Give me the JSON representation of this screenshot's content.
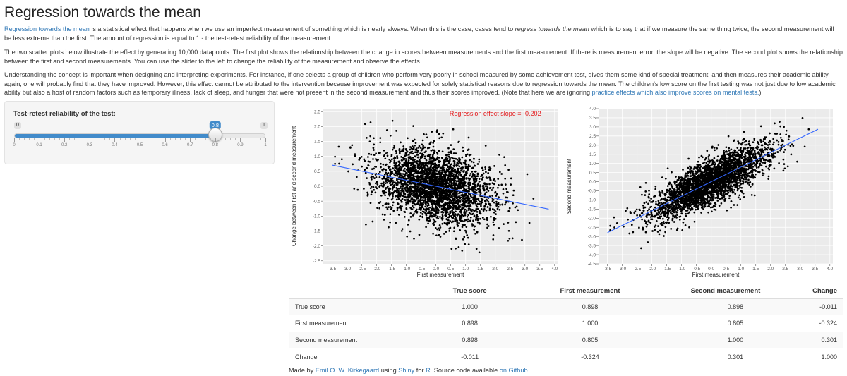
{
  "page": {
    "title": "Regression towards the mean",
    "intro": {
      "link_text": "Regression towards the mean",
      "text_a": " is a statistical effect that happens when we use an imperfect measurement of something which is nearly always. When this is the case, cases tend to ",
      "emph": "regress towards the mean",
      "text_b": " which is to say that if we measure the same thing twice, the second measurement will be less extreme than the first. The amount of regression is equal to 1 - the test-retest reliability of the measurement."
    },
    "para2": "The two scatter plots below illustrate the effect by generating 10,000 datapoints. The first plot shows the relationship between the change in scores between measurements and the first measurement. If there is measurement error, the slope will be negative. The second plot shows the relationship between the first and second measurements. You can use the slider to the left to change the reliability of the measurement and observe the effects.",
    "para3": {
      "text": "Understanding the concept is important when designing and interpreting experiments. For instance, if one selects a group of children who perform very poorly in school measured by some achievement test, gives them some kind of special treatment, and then measures their academic ability again, one will probably find that they have improved. However, this effect cannot be attributed to the intervention because improvement was expected for solely statistical reasons due to regression towards the mean. The children's low score on the first testing was not just due to low academic ability but also a host of random factors such as temporary illness, lack of sleep, and hunger that were not present in the second measurement and thus their scores improved. (Note that here we are ignoring ",
      "link_text": "practice effects which also improve scores on mental tests.",
      "end": ")"
    }
  },
  "slider": {
    "label": "Test-retest reliability of the test:",
    "min_label": "0",
    "max_label": "1",
    "value": 0.8,
    "value_label": "0.8",
    "tick_labels": [
      "0",
      "0.1",
      "0.2",
      "0.3",
      "0.4",
      "0.5",
      "0.6",
      "0.7",
      "0.8",
      "0.9",
      "1"
    ],
    "accent_color": "#428bca"
  },
  "chart_data": [
    {
      "type": "scatter",
      "xlabel": "First measurement",
      "ylabel": "Change between first and second measurement",
      "annotation": "Regression effect slope = -0.202",
      "annotation_color": "#e41a1c",
      "xticks": [
        "-3.5",
        "-3.0",
        "-2.5",
        "-2.0",
        "-1.5",
        "-1.0",
        "-0.5",
        "0.0",
        "0.5",
        "1.0",
        "1.5",
        "2.0",
        "2.5",
        "3.0",
        "3.5",
        "4.0"
      ],
      "yticks": [
        "-2.5",
        "-2.0",
        "-1.5",
        "-1.0",
        "-0.5",
        "0.0",
        "0.5",
        "1.0",
        "1.5",
        "2.0",
        "2.5"
      ],
      "xlim": [
        -3.8,
        4.1
      ],
      "ylim": [
        -2.6,
        2.6
      ],
      "n_points": 10000,
      "fit_line": {
        "slope": -0.202,
        "intercept": 0.0,
        "x_range": [
          -3.5,
          3.8
        ]
      },
      "point_color": "#000000",
      "line_color": "#3366ff",
      "grid": true,
      "background": "#ebebeb"
    },
    {
      "type": "scatter",
      "xlabel": "First measurement",
      "ylabel": "Second measurement",
      "xticks": [
        "-3.5",
        "-3.0",
        "-2.5",
        "-2.0",
        "-1.5",
        "-1.0",
        "-0.5",
        "0.0",
        "0.5",
        "1.0",
        "1.5",
        "2.0",
        "2.5",
        "3.0",
        "3.5",
        "4.0"
      ],
      "yticks": [
        "-4.5",
        "-4.0",
        "-3.5",
        "-3.0",
        "-2.5",
        "-2.0",
        "-1.5",
        "-1.0",
        "-0.5",
        "0.0",
        "0.5",
        "1.0",
        "1.5",
        "2.0",
        "2.5",
        "3.0",
        "3.5",
        "4.0"
      ],
      "xlim": [
        -3.8,
        4.1
      ],
      "ylim": [
        -4.5,
        4.0
      ],
      "n_points": 10000,
      "fit_line": {
        "slope": 0.798,
        "intercept": 0.0,
        "x_range": [
          -3.5,
          3.6
        ]
      },
      "point_color": "#000000",
      "line_color": "#3366ff",
      "grid": true,
      "background": "#ebebeb"
    }
  ],
  "table": {
    "headers": [
      "",
      "True score",
      "First measurement",
      "Second measurement",
      "Change"
    ],
    "rows": [
      {
        "label": "True score",
        "values": [
          "1.000",
          "0.898",
          "0.898",
          "-0.011"
        ]
      },
      {
        "label": "First measurement",
        "values": [
          "0.898",
          "1.000",
          "0.805",
          "-0.324"
        ]
      },
      {
        "label": "Second measurement",
        "values": [
          "0.898",
          "0.805",
          "1.000",
          "0.301"
        ]
      },
      {
        "label": "Change",
        "values": [
          "-0.011",
          "-0.324",
          "0.301",
          "1.000"
        ]
      }
    ]
  },
  "footer": {
    "made_by": "Made by ",
    "author": "Emil O. W. Kirkegaard",
    "using": " using ",
    "shiny": "Shiny",
    "for": " for ",
    "r": "R",
    "source": ". Source code available ",
    "github": "on Github",
    "end": "."
  }
}
